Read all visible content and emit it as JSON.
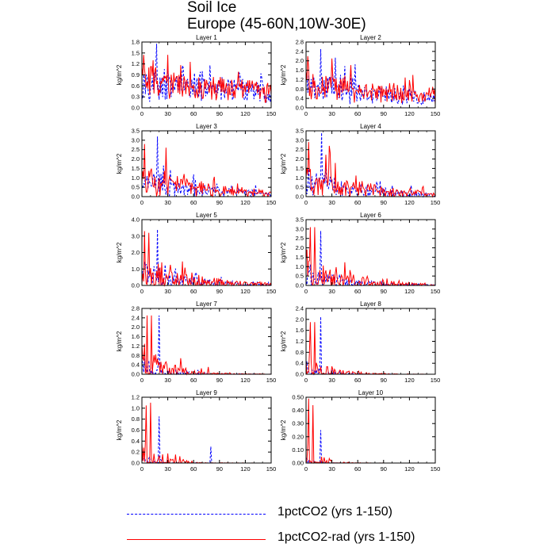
{
  "header": {
    "title_line1": "Soil Ice",
    "title_line2": "Europe (45-60N,10W-30E)"
  },
  "legend": [
    {
      "label": "1pctCO2 (yrs 1-150)",
      "color": "#0000ff",
      "dash": "dashed"
    },
    {
      "label": "1pctCO2-rad (yrs 1-150)",
      "color": "#ff0000",
      "dash": "solid"
    }
  ],
  "chart_data": [
    {
      "type": "line",
      "title": "Layer 1",
      "ylabel": "kg/m^2",
      "xlim": [
        0,
        150
      ],
      "ylim": [
        0,
        1.8
      ],
      "xticks": [
        0,
        30,
        60,
        90,
        120,
        150
      ],
      "yticks": [
        "0.0",
        "0.3",
        "0.6",
        "0.9",
        "1.2",
        "1.5",
        "1.8"
      ],
      "series": [
        {
          "name": "1pctCO2 (yrs 1-150)",
          "color": "#0000ff",
          "style": "dashed",
          "base": 1.1,
          "decay": 0.004,
          "amp": 0.45,
          "sparse": 0,
          "peaks": [
            [
              17,
              1.75
            ]
          ]
        },
        {
          "name": "1pctCO2-rad (yrs 1-150)",
          "color": "#ff0000",
          "style": "solid",
          "base": 1.2,
          "decay": 0.004,
          "amp": 0.4,
          "sparse": 0,
          "peaks": [
            [
              2,
              1.45
            ],
            [
              30,
              1.45
            ]
          ]
        }
      ]
    },
    {
      "type": "line",
      "title": "Layer 2",
      "ylabel": "kg/m^2",
      "xlim": [
        0,
        150
      ],
      "ylim": [
        0,
        2.8
      ],
      "xticks": [
        0,
        30,
        60,
        90,
        120,
        150
      ],
      "yticks": [
        "0.0",
        "0.4",
        "0.8",
        "1.2",
        "1.6",
        "2.0",
        "2.4",
        "2.8"
      ],
      "series": [
        {
          "name": "1pctCO2 (yrs 1-150)",
          "color": "#0000ff",
          "style": "dashed",
          "base": 1.5,
          "decay": 0.006,
          "amp": 0.8,
          "sparse": 0,
          "peaks": [
            [
              17,
              2.5
            ]
          ]
        },
        {
          "name": "1pctCO2-rad (yrs 1-150)",
          "color": "#ff0000",
          "style": "solid",
          "base": 1.6,
          "decay": 0.006,
          "amp": 0.75,
          "sparse": 0,
          "peaks": [
            [
              2,
              2.2
            ],
            [
              30,
              2.1
            ]
          ]
        }
      ]
    },
    {
      "type": "line",
      "title": "Layer 3",
      "ylabel": "kg/m^2",
      "xlim": [
        0,
        150
      ],
      "ylim": [
        0,
        3.5
      ],
      "xticks": [
        0,
        30,
        60,
        90,
        120,
        150
      ],
      "yticks": [
        "0.0",
        "0.5",
        "1.0",
        "1.5",
        "2.0",
        "2.5",
        "3.0",
        "3.5"
      ],
      "series": [
        {
          "name": "1pctCO2 (yrs 1-150)",
          "color": "#0000ff",
          "style": "dashed",
          "base": 1.3,
          "decay": 0.012,
          "amp": 1.0,
          "sparse": 0.1,
          "peaks": [
            [
              18,
              3.2
            ]
          ]
        },
        {
          "name": "1pctCO2-rad (yrs 1-150)",
          "color": "#ff0000",
          "style": "solid",
          "base": 1.5,
          "decay": 0.012,
          "amp": 1.0,
          "sparse": 0.1,
          "peaks": [
            [
              3,
              2.8
            ],
            [
              28,
              2.6
            ]
          ]
        }
      ]
    },
    {
      "type": "line",
      "title": "Layer 4",
      "ylabel": "kg/m^2",
      "xlim": [
        0,
        150
      ],
      "ylim": [
        0,
        3.5
      ],
      "xticks": [
        0,
        30,
        60,
        90,
        120,
        150
      ],
      "yticks": [
        "0.0",
        "0.5",
        "1.0",
        "1.5",
        "2.0",
        "2.5",
        "3.0",
        "3.5"
      ],
      "series": [
        {
          "name": "1pctCO2 (yrs 1-150)",
          "color": "#0000ff",
          "style": "dashed",
          "base": 1.3,
          "decay": 0.013,
          "amp": 1.0,
          "sparse": 0.15,
          "peaks": [
            [
              18,
              3.4
            ]
          ]
        },
        {
          "name": "1pctCO2-rad (yrs 1-150)",
          "color": "#ff0000",
          "style": "solid",
          "base": 1.5,
          "decay": 0.013,
          "amp": 1.0,
          "sparse": 0.15,
          "peaks": [
            [
              3,
              2.9
            ],
            [
              27,
              2.7
            ]
          ]
        }
      ]
    },
    {
      "type": "line",
      "title": "Layer 5",
      "ylabel": "kg/m^2",
      "xlim": [
        0,
        150
      ],
      "ylim": [
        0,
        4.0
      ],
      "xticks": [
        0,
        30,
        60,
        90,
        120,
        150
      ],
      "yticks": [
        "0.0",
        "1.0",
        "2.0",
        "3.0",
        "4.0"
      ],
      "series": [
        {
          "name": "1pctCO2 (yrs 1-150)",
          "color": "#0000ff",
          "style": "dashed",
          "base": 1.2,
          "decay": 0.018,
          "amp": 1.2,
          "sparse": 0.3,
          "peaks": [
            [
              18,
              3.4
            ]
          ]
        },
        {
          "name": "1pctCO2-rad (yrs 1-150)",
          "color": "#ff0000",
          "style": "solid",
          "base": 1.5,
          "decay": 0.016,
          "amp": 1.3,
          "sparse": 0.3,
          "peaks": [
            [
              3,
              3.3
            ],
            [
              8,
              3.2
            ]
          ]
        }
      ]
    },
    {
      "type": "line",
      "title": "Layer 6",
      "ylabel": "kg/m^2",
      "xlim": [
        0,
        150
      ],
      "ylim": [
        0,
        3.5
      ],
      "xticks": [
        0,
        30,
        60,
        90,
        120,
        150
      ],
      "yticks": [
        "0.0",
        "0.5",
        "1.0",
        "1.5",
        "2.0",
        "2.5",
        "3.0",
        "3.5"
      ],
      "series": [
        {
          "name": "1pctCO2 (yrs 1-150)",
          "color": "#0000ff",
          "style": "dashed",
          "base": 1.0,
          "decay": 0.022,
          "amp": 1.1,
          "sparse": 0.45,
          "peaks": [
            [
              17,
              2.9
            ]
          ]
        },
        {
          "name": "1pctCO2-rad (yrs 1-150)",
          "color": "#ff0000",
          "style": "solid",
          "base": 1.4,
          "decay": 0.02,
          "amp": 1.3,
          "sparse": 0.45,
          "peaks": [
            [
              5,
              3.1
            ],
            [
              10,
              3.1
            ]
          ]
        }
      ]
    },
    {
      "type": "line",
      "title": "Layer 7",
      "ylabel": "kg/m^2",
      "xlim": [
        0,
        150
      ],
      "ylim": [
        0,
        2.8
      ],
      "xticks": [
        0,
        30,
        60,
        90,
        120,
        150
      ],
      "yticks": [
        "0.0",
        "0.4",
        "0.8",
        "1.2",
        "1.6",
        "2.0",
        "2.4",
        "2.8"
      ],
      "series": [
        {
          "name": "1pctCO2 (yrs 1-150)",
          "color": "#0000ff",
          "style": "dashed",
          "base": 0.6,
          "decay": 0.035,
          "amp": 0.8,
          "sparse": 0.6,
          "peaks": [
            [
              20,
              2.5
            ]
          ]
        },
        {
          "name": "1pctCO2-rad (yrs 1-150)",
          "color": "#ff0000",
          "style": "solid",
          "base": 1.0,
          "decay": 0.03,
          "amp": 1.0,
          "sparse": 0.55,
          "peaks": [
            [
              6,
              2.5
            ],
            [
              11,
              2.5
            ]
          ]
        }
      ]
    },
    {
      "type": "line",
      "title": "Layer 8",
      "ylabel": "kg/m^2",
      "xlim": [
        0,
        150
      ],
      "ylim": [
        0,
        2.4
      ],
      "xticks": [
        0,
        30,
        60,
        90,
        120,
        150
      ],
      "yticks": [
        "0.0",
        "0.4",
        "0.8",
        "1.2",
        "1.6",
        "2.0",
        "2.4"
      ],
      "series": [
        {
          "name": "1pctCO2 (yrs 1-150)",
          "color": "#0000ff",
          "style": "dashed",
          "base": 0.4,
          "decay": 0.05,
          "amp": 0.6,
          "sparse": 0.7,
          "peaks": [
            [
              17,
              2.1
            ]
          ]
        },
        {
          "name": "1pctCO2-rad (yrs 1-150)",
          "color": "#ff0000",
          "style": "solid",
          "base": 0.9,
          "decay": 0.04,
          "amp": 0.9,
          "sparse": 0.6,
          "peaks": [
            [
              5,
              1.9
            ],
            [
              10,
              1.9
            ]
          ]
        }
      ]
    },
    {
      "type": "line",
      "title": "Layer 9",
      "ylabel": "kg/m^2",
      "xlim": [
        0,
        150
      ],
      "ylim": [
        0,
        1.2
      ],
      "xticks": [
        0,
        30,
        60,
        90,
        120,
        150
      ],
      "yticks": [
        "0.0",
        "0.2",
        "0.4",
        "0.6",
        "0.8",
        "1.0",
        "1.2"
      ],
      "series": [
        {
          "name": "1pctCO2 (yrs 1-150)",
          "color": "#0000ff",
          "style": "dashed",
          "base": 0.15,
          "decay": 0.06,
          "amp": 0.2,
          "sparse": 0.8,
          "peaks": [
            [
              20,
              0.85
            ],
            [
              80,
              0.3
            ]
          ]
        },
        {
          "name": "1pctCO2-rad (yrs 1-150)",
          "color": "#ff0000",
          "style": "solid",
          "base": 0.4,
          "decay": 0.05,
          "amp": 0.5,
          "sparse": 0.7,
          "peaks": [
            [
              5,
              1.05
            ],
            [
              10,
              1.1
            ]
          ]
        }
      ]
    },
    {
      "type": "line",
      "title": "Layer 10",
      "ylabel": "kg/m^2",
      "xlim": [
        0,
        150
      ],
      "ylim": [
        0,
        0.5
      ],
      "xticks": [
        0,
        30,
        60,
        90,
        120,
        150
      ],
      "yticks": [
        "0.00",
        "0.10",
        "0.20",
        "0.30",
        "0.40",
        "0.50"
      ],
      "series": [
        {
          "name": "1pctCO2 (yrs 1-150)",
          "color": "#0000ff",
          "style": "dashed",
          "base": 0.02,
          "decay": 0.08,
          "amp": 0.05,
          "sparse": 0.85,
          "peaks": [
            [
              17,
              0.25
            ]
          ]
        },
        {
          "name": "1pctCO2-rad (yrs 1-150)",
          "color": "#ff0000",
          "style": "solid",
          "base": 0.15,
          "decay": 0.07,
          "amp": 0.2,
          "sparse": 0.8,
          "peaks": [
            [
              3,
              0.49
            ],
            [
              8,
              0.44
            ]
          ]
        }
      ]
    }
  ]
}
